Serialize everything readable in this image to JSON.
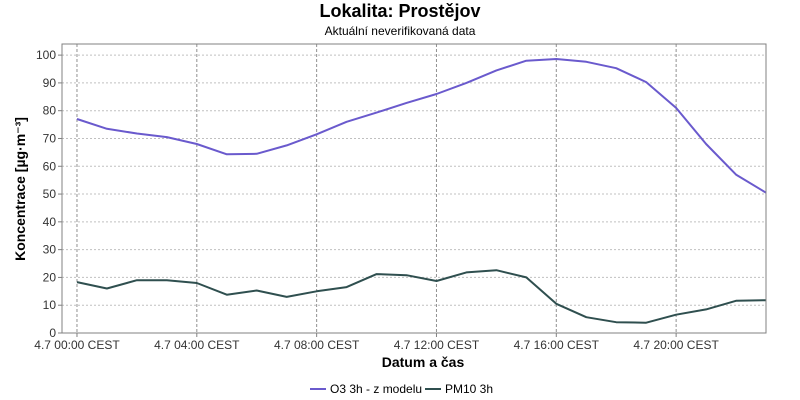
{
  "chart_data": {
    "type": "line",
    "title": "Lokalita: Prostějov",
    "subtitle": "Aktuální neverifikovaná data",
    "xlabel": "Datum a čas",
    "ylabel": "Koncentrace [µg·m⁻³]",
    "ylim": [
      0,
      104
    ],
    "yticks": [
      0,
      10,
      20,
      30,
      40,
      50,
      60,
      70,
      80,
      90,
      100
    ],
    "xlim": [
      -0.5,
      23
    ],
    "xticks": [
      {
        "x": 0,
        "label": "4.7 00:00 CEST"
      },
      {
        "x": 4,
        "label": "4.7 04:00 CEST"
      },
      {
        "x": 8,
        "label": "4.7 08:00 CEST"
      },
      {
        "x": 12,
        "label": "4.7 12:00 CEST"
      },
      {
        "x": 16,
        "label": "4.7 16:00 CEST"
      },
      {
        "x": 20,
        "label": "4.7 20:00 CEST"
      }
    ],
    "grid": true,
    "legend_position": "bottom",
    "x": [
      0,
      1,
      2,
      3,
      4,
      5,
      6,
      7,
      8,
      9,
      10,
      11,
      12,
      13,
      14,
      15,
      16,
      17,
      18,
      19,
      20,
      21,
      22,
      23
    ],
    "series": [
      {
        "name": "O3 3h - z modelu",
        "color": "#6a5acd",
        "values": [
          77,
          73.5,
          71.8,
          70.5,
          68,
          64.3,
          64.5,
          67.5,
          71.5,
          76,
          79.3,
          82.8,
          86,
          90,
          94.5,
          98,
          98.6,
          97.6,
          95.3,
          90.3,
          81,
          68,
          57,
          50.5
        ]
      },
      {
        "name": "PM10 3h",
        "color": "#2f4f4f",
        "values": [
          18.3,
          16,
          19,
          19,
          18,
          13.8,
          15.3,
          13,
          15,
          16.5,
          21.2,
          20.8,
          18.7,
          21.8,
          22.6,
          20,
          10.5,
          5.7,
          3.9,
          3.7,
          6.6,
          8.5,
          11.6,
          11.8
        ]
      }
    ]
  }
}
